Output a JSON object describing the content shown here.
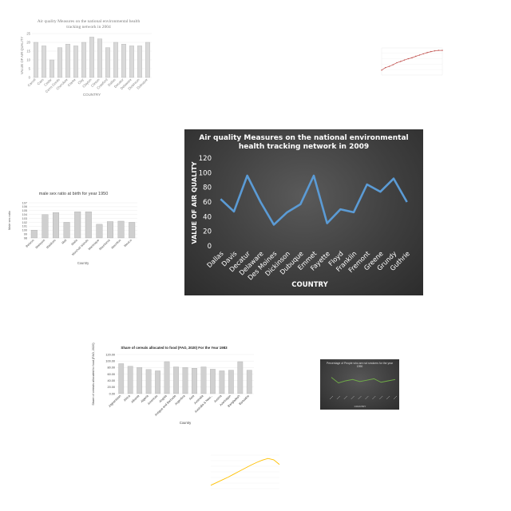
{
  "chart_data": [
    {
      "id": "main",
      "type": "line",
      "title_lines": [
        "Air quality Measures on the national environmental",
        "health tracking network in 2009"
      ],
      "xlabel": "COUNTRY",
      "ylabel": "VALUE OF AIR QUALITY",
      "ylim": [
        0,
        120
      ],
      "yticks": [
        "0",
        "20",
        "40",
        "60",
        "80",
        "100",
        "120"
      ],
      "categories": [
        "Dallas",
        "Davis",
        "Decatur",
        "Delaware",
        "Des Moines",
        "Dickinson",
        "Dubuque",
        "Emmet",
        "Fayette",
        "Floyd",
        "Franklin",
        "Fremont",
        "Greene",
        "Grundy",
        "Guthrie"
      ],
      "series": [
        {
          "values": [
            64,
            47,
            96,
            60,
            29,
            46,
            57,
            96,
            31,
            50,
            46,
            84,
            74,
            92,
            60
          ]
        }
      ],
      "colors": {
        "line": "#5b9bd5",
        "text": "#ffffff",
        "background": "#404040"
      }
    },
    {
      "id": "top-left",
      "type": "bar",
      "title_lines": [
        "Air quality Measures on the national environmental health",
        "tracking network in 2004"
      ],
      "xlabel": "COUNTRY",
      "ylabel": "VALUE OF AIR QUALITY",
      "ylim": [
        0,
        25
      ],
      "yticks": [
        "0",
        "5",
        "10",
        "15",
        "20",
        "25"
      ],
      "categories": [
        "Carroll",
        "Cass",
        "Cedar",
        "Cerro Gordo",
        "Cherokee",
        "Clarke",
        "Clay",
        "Clayton",
        "Clinton",
        "Crawford",
        "Dallas",
        "Decatur",
        "Delaware",
        "Dickinson",
        "Dubuque"
      ],
      "series": [
        {
          "values": [
            20,
            18,
            10,
            17,
            19,
            18,
            20,
            23,
            22,
            17,
            20,
            19,
            18,
            18,
            20
          ]
        }
      ],
      "colors": {
        "bar": "#d9d9d9",
        "text": "#7f7f7f"
      }
    },
    {
      "id": "mid-left",
      "type": "bar",
      "title": "male sex ratio at birth for year 1950",
      "xlabel": "Country",
      "ylabel": "Male sex ratio",
      "ylim": [
        98,
        107
      ],
      "yticks": [
        "98",
        "99",
        "100",
        "101",
        "102",
        "103",
        "104",
        "105",
        "106",
        "107"
      ],
      "categories": [
        "Belarus",
        "Malaysia",
        "Maldives",
        "Mali",
        "Malta",
        "Marshall Islands",
        "Martinique",
        "Mauritania",
        "Mauritius",
        "Mexico"
      ],
      "series": [
        {
          "values": [
            100,
            104,
            104.5,
            102,
            104.7,
            104.7,
            101.5,
            102.2,
            102.3,
            102
          ]
        }
      ],
      "colors": {
        "bar": "#cfcfcf",
        "text": "#595959"
      }
    },
    {
      "id": "bottom-left",
      "type": "bar",
      "title": "Share of cereals allocated to food (FAO, 2020)  For the Year 1983",
      "xlabel": "Country",
      "ylabel": "Share of cereals allocated to food (FAO, 2020)",
      "ylim": [
        0,
        120
      ],
      "yticks": [
        "0.00",
        "20.00",
        "40.00",
        "60.00",
        "80.00",
        "100.00",
        "120.00"
      ],
      "categories": [
        "Afghanistan",
        "Africa",
        "Albania",
        "Algeria",
        "Americas",
        "Angola",
        "Antigua and Barbuda",
        "Argentina",
        "Asia",
        "Australia",
        "Australia & New...",
        "Austria",
        "Azerbaijan",
        "Bangladesh",
        "Barbados"
      ],
      "series": [
        {
          "values": [
            92,
            84,
            80,
            74,
            70,
            98,
            82,
            80,
            78,
            82,
            75,
            70,
            72,
            98,
            72
          ]
        }
      ],
      "colors": {
        "bar": "#d0d0d0",
        "text": "#404040"
      }
    },
    {
      "id": "top-right",
      "type": "line",
      "series": [
        {
          "values": [
            2,
            3,
            3.5,
            4.2,
            5,
            5.5,
            6.1,
            6.6,
            7,
            7.6,
            8.1,
            8.6,
            9.1,
            9.5,
            9.8,
            10,
            10
          ]
        }
      ],
      "colors": {
        "line": "#c0504d"
      }
    },
    {
      "id": "mid-right",
      "type": "line",
      "title": "Percentage of People who are not smokers for the year 1990",
      "xlabel": "COUNTRY",
      "series": [
        {
          "values": [
            60,
            52,
            55,
            57,
            54,
            56,
            58,
            53,
            55,
            57
          ]
        }
      ],
      "colors": {
        "line": "#70ad47",
        "background": "#404040"
      }
    },
    {
      "id": "bottom-center",
      "type": "line",
      "series": [
        {
          "values": [
            10,
            18,
            26,
            34,
            43,
            52,
            61,
            70,
            78,
            85,
            90,
            86,
            72
          ]
        }
      ],
      "colors": {
        "line": "#ffc000"
      }
    }
  ]
}
